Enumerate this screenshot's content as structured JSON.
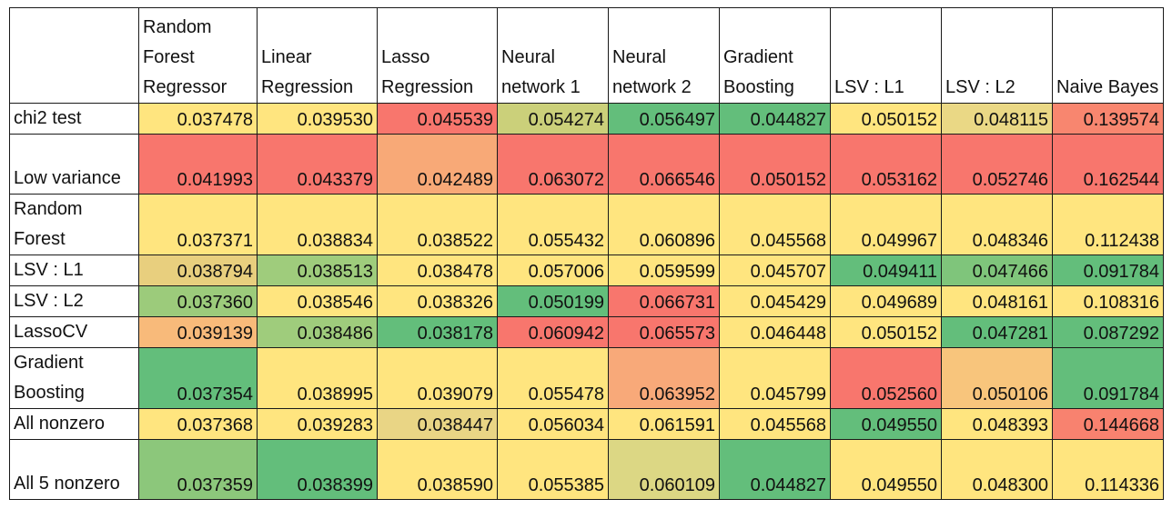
{
  "chart_data": {
    "type": "heatmap",
    "title": "",
    "columns": [
      "Random Forest Regressor",
      "Linear Regression",
      "Lasso Regression",
      "Neural network 1",
      "Neural network 2",
      "Gradient Boosting",
      "LSV : L1",
      "LSV : L2",
      "Naive Bayes"
    ],
    "rows": [
      {
        "label": "chi2 test",
        "values": [
          "0.037478",
          "0.039530",
          "0.045539",
          "0.054274",
          "0.056497",
          "0.044827",
          "0.050152",
          "0.048115",
          "0.139574"
        ],
        "colors": [
          "#ffe57f",
          "#ffe57f",
          "#f8766d",
          "#cbd07a",
          "#63be7b",
          "#63be7b",
          "#ffe57f",
          "#ead885",
          "#f8866f"
        ]
      },
      {
        "label": "Low variance",
        "values": [
          "0.041993",
          "0.043379",
          "0.042489",
          "0.063072",
          "0.066546",
          "0.050152",
          "0.053162",
          "0.052746",
          "0.162544"
        ],
        "colors": [
          "#f8766d",
          "#f8766d",
          "#f8a977",
          "#f8766d",
          "#f8766d",
          "#f8766d",
          "#f8766d",
          "#f8766d",
          "#f8766d"
        ]
      },
      {
        "label": "Random Forest",
        "values": [
          "0.037371",
          "0.038834",
          "0.038522",
          "0.055432",
          "0.060896",
          "0.045568",
          "0.049967",
          "0.048346",
          "0.112438"
        ],
        "colors": [
          "#ffe57f",
          "#ffe57f",
          "#ffe57f",
          "#ffe57f",
          "#ffe57f",
          "#ffe57f",
          "#ffe57f",
          "#ffe57f",
          "#ffe57f"
        ]
      },
      {
        "label": "LSV : L1",
        "values": [
          "0.038794",
          "0.038513",
          "0.038478",
          "0.057006",
          "0.059599",
          "0.045707",
          "0.049411",
          "0.047466",
          "0.091784"
        ],
        "colors": [
          "#e8cf7e",
          "#9fcc7c",
          "#ffe57f",
          "#ffe57f",
          "#ffe57f",
          "#ffe57f",
          "#63be7b",
          "#7fc57b",
          "#63be7b"
        ]
      },
      {
        "label": "LSV : L2",
        "values": [
          "0.037360",
          "0.038546",
          "0.038326",
          "0.050199",
          "0.066731",
          "0.045429",
          "0.049689",
          "0.048161",
          "0.108316"
        ],
        "colors": [
          "#9ccb7b",
          "#ffe57f",
          "#ffe57f",
          "#63be7b",
          "#f8766d",
          "#ffe57f",
          "#ffe57f",
          "#ffe57f",
          "#ffe57f"
        ]
      },
      {
        "label": "LassoCV",
        "values": [
          "0.039139",
          "0.038486",
          "0.038178",
          "0.060942",
          "0.065573",
          "0.046448",
          "0.050152",
          "0.047281",
          "0.087292"
        ],
        "colors": [
          "#f8ba7a",
          "#9fcc7c",
          "#63be7b",
          "#f8766d",
          "#f8766d",
          "#ffe57f",
          "#ffe57f",
          "#63be7b",
          "#63be7b"
        ]
      },
      {
        "label": "Gradient Boosting",
        "values": [
          "0.037354",
          "0.038995",
          "0.039079",
          "0.055478",
          "0.063952",
          "0.045799",
          "0.052560",
          "0.050106",
          "0.091784"
        ],
        "colors": [
          "#63be7b",
          "#ffe57f",
          "#ffe57f",
          "#ffe57f",
          "#f8a979",
          "#ffe57f",
          "#f8766d",
          "#f8c57c",
          "#63be7b"
        ]
      },
      {
        "label": "All nonzero",
        "values": [
          "0.037368",
          "0.039283",
          "0.038447",
          "0.056034",
          "0.061591",
          "0.045568",
          "0.049550",
          "0.048393",
          "0.144668"
        ],
        "colors": [
          "#ffe57f",
          "#ffe57f",
          "#e9d585",
          "#ffe57f",
          "#ffe57f",
          "#ffe57f",
          "#63be7b",
          "#ffe57f",
          "#f8826f"
        ]
      },
      {
        "label": "All 5 nonzero",
        "values": [
          "0.037359",
          "0.038399",
          "0.038590",
          "0.055385",
          "0.060109",
          "0.044827",
          "0.049550",
          "0.048300",
          "0.114336"
        ],
        "colors": [
          "#8cc77b",
          "#63be7b",
          "#ffe57f",
          "#ffe57f",
          "#dcd784",
          "#63be7b",
          "#ffe57f",
          "#ffe57f",
          "#ffe57f"
        ]
      }
    ]
  }
}
